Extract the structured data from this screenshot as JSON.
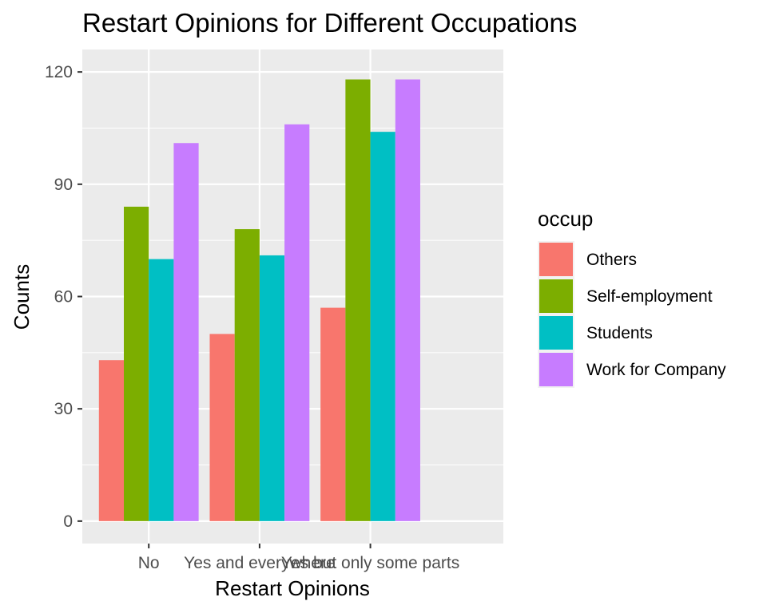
{
  "chart_data": {
    "type": "bar",
    "title": "Restart Opinions for Different Occupations",
    "xlabel": "Restart Opinions",
    "ylabel": "Counts",
    "categories": [
      "No",
      "Yes and everywhere",
      "Yes but only some parts"
    ],
    "ylim": [
      -6,
      126
    ],
    "yticks": [
      0,
      30,
      60,
      90,
      120
    ],
    "grid": true,
    "legend": {
      "title": "occup",
      "placement": "right"
    },
    "series": [
      {
        "name": "Others",
        "color": "#F8766D",
        "values": [
          43,
          50,
          57
        ]
      },
      {
        "name": "Self-employment",
        "color": "#7CAE00",
        "values": [
          84,
          78,
          118
        ]
      },
      {
        "name": "Students",
        "color": "#00BFC4",
        "values": [
          70,
          71,
          104
        ]
      },
      {
        "name": "Work for Company",
        "color": "#C77CFF",
        "values": [
          101,
          106,
          118
        ]
      }
    ],
    "panel_color": "#EBEBEB",
    "grid_color": "#FFFFFF"
  }
}
